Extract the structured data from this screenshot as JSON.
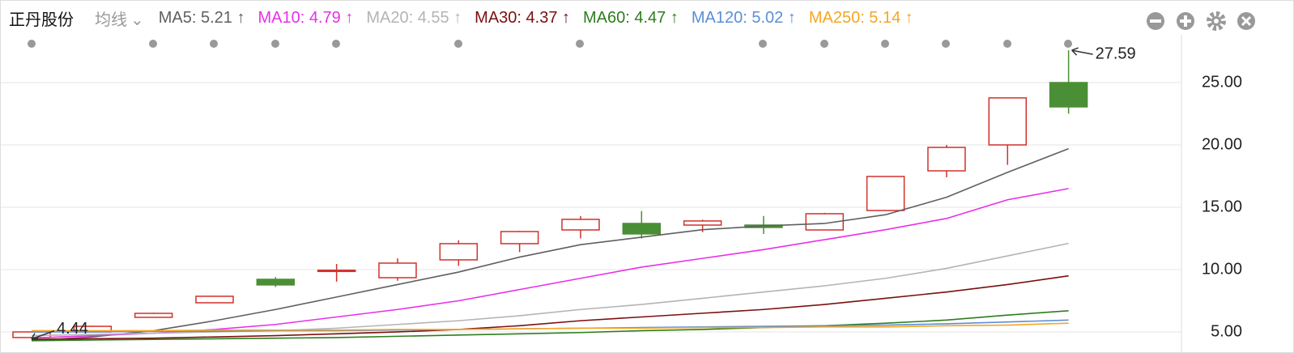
{
  "header": {
    "title": "正丹股份",
    "ma_menu": "均线"
  },
  "chart_data": {
    "type": "candlestick",
    "categories": [
      null,
      null,
      null,
      null,
      null,
      null,
      null,
      null,
      null,
      null,
      null,
      null,
      null,
      null,
      null,
      null,
      null,
      null
    ],
    "open": [
      4.55,
      5.0,
      6.17,
      7.34,
      9.22,
      9.85,
      9.35,
      10.78,
      12.08,
      13.18,
      13.7,
      13.57,
      13.57,
      13.18,
      14.74,
      17.92,
      20.0,
      25.0
    ],
    "close": [
      5.0,
      5.45,
      6.49,
      7.86,
      8.77,
      9.95,
      10.52,
      12.08,
      13.05,
      14.03,
      12.86,
      13.9,
      13.38,
      14.48,
      17.47,
      19.8,
      23.77,
      23.05
    ],
    "high": [
      5.0,
      5.5,
      6.55,
      7.9,
      9.4,
      10.45,
      10.9,
      12.35,
      13.1,
      14.3,
      14.7,
      14.0,
      14.3,
      14.55,
      17.5,
      20.0,
      23.8,
      27.59
    ],
    "low": [
      4.44,
      5.0,
      6.17,
      7.3,
      8.6,
      9.03,
      9.1,
      10.3,
      11.4,
      12.5,
      12.5,
      13.0,
      12.86,
      13.18,
      14.74,
      17.4,
      18.4,
      22.5
    ],
    "up_color": "#d0312d",
    "down_color": "#4a8f35",
    "lines": [
      {
        "name": "MA5: 5.21 ↑",
        "color": "#5f5f5f",
        "values": [
          4.3,
          4.6,
          5.1,
          5.9,
          6.8,
          7.8,
          8.8,
          9.8,
          11.0,
          12.0,
          12.6,
          13.2,
          13.5,
          13.7,
          14.4,
          15.8,
          17.8,
          19.7
        ]
      },
      {
        "name": "MA10: 4.79 ↑",
        "color": "#e830e8",
        "values": [
          4.5,
          4.7,
          4.9,
          5.2,
          5.6,
          6.2,
          6.8,
          7.5,
          8.4,
          9.3,
          10.2,
          10.9,
          11.6,
          12.4,
          13.2,
          14.1,
          15.6,
          16.5
        ]
      },
      {
        "name": "MA20: 4.55 ↑",
        "color": "#b4b4b4",
        "values": [
          4.7,
          4.8,
          4.9,
          5.0,
          5.1,
          5.3,
          5.6,
          5.9,
          6.3,
          6.8,
          7.2,
          7.7,
          8.2,
          8.7,
          9.3,
          10.1,
          11.1,
          12.1
        ]
      },
      {
        "name": "MA30: 4.37 ↑",
        "color": "#7a1010",
        "values": [
          4.4,
          4.45,
          4.5,
          4.6,
          4.7,
          4.85,
          5.0,
          5.2,
          5.5,
          5.9,
          6.2,
          6.5,
          6.8,
          7.2,
          7.7,
          8.2,
          8.8,
          9.5
        ]
      },
      {
        "name": "MA60: 4.47 ↑",
        "color": "#2e7d1e",
        "values": [
          4.3,
          4.35,
          4.4,
          4.45,
          4.5,
          4.55,
          4.65,
          4.75,
          4.85,
          4.95,
          5.1,
          5.2,
          5.35,
          5.5,
          5.7,
          5.95,
          6.35,
          6.7
        ]
      },
      {
        "name": "MA120: 5.02 ↑",
        "color": "#5b8fd6",
        "values": [
          5.0,
          5.0,
          5.05,
          5.05,
          5.1,
          5.1,
          5.15,
          5.2,
          5.25,
          5.3,
          5.35,
          5.4,
          5.45,
          5.5,
          5.55,
          5.65,
          5.8,
          5.95
        ]
      },
      {
        "name": "MA250: 5.14 ↑",
        "color": "#f5a623",
        "values": [
          5.1,
          5.1,
          5.1,
          5.15,
          5.15,
          5.15,
          5.2,
          5.2,
          5.25,
          5.3,
          5.3,
          5.35,
          5.35,
          5.4,
          5.4,
          5.5,
          5.55,
          5.7
        ]
      }
    ],
    "ylim": [
      3.96,
      28.83
    ],
    "yticks": [
      {
        "value": 5,
        "label": "5.00"
      },
      {
        "value": 10,
        "label": "10.00"
      },
      {
        "value": 15,
        "label": "15.00"
      },
      {
        "value": 20,
        "label": "20.00"
      },
      {
        "value": 25,
        "label": "25.00"
      }
    ],
    "grid": true
  }
}
